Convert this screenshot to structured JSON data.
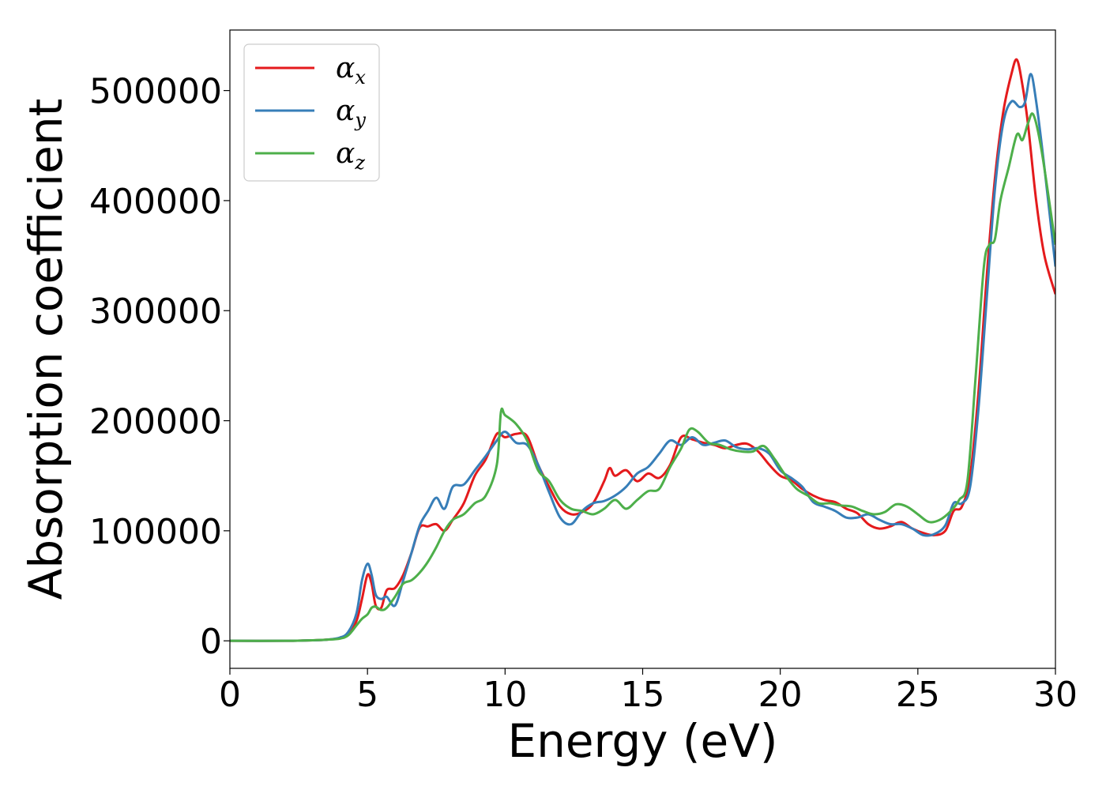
{
  "chart_data": {
    "type": "line",
    "xlabel": "Energy (eV)",
    "ylabel": "Absorption coefficient",
    "xlim": [
      0,
      30
    ],
    "ylim": [
      -25000,
      555000
    ],
    "xticks": [
      0,
      5,
      10,
      15,
      20,
      25,
      30
    ],
    "xtick_labels": [
      "0",
      "5",
      "10",
      "15",
      "20",
      "25",
      "30"
    ],
    "yticks": [
      0,
      100000,
      200000,
      300000,
      400000,
      500000
    ],
    "ytick_labels": [
      "0",
      "100000",
      "200000",
      "300000",
      "400000",
      "500000"
    ],
    "grid": false,
    "legend_position": "top-left",
    "series": [
      {
        "name": "α",
        "subscript": "x",
        "color": "#e41a1c",
        "x": [
          0,
          2,
          3,
          3.5,
          4,
          4.3,
          4.6,
          4.8,
          5.0,
          5.15,
          5.3,
          5.5,
          5.7,
          6.0,
          6.3,
          6.6,
          6.9,
          7.2,
          7.5,
          7.8,
          8.1,
          8.5,
          8.9,
          9.3,
          9.7,
          10.0,
          10.4,
          10.8,
          11.2,
          11.6,
          12.0,
          12.4,
          12.8,
          13.2,
          13.6,
          13.8,
          14.0,
          14.4,
          14.8,
          15.2,
          15.6,
          16.0,
          16.4,
          16.8,
          17.2,
          17.6,
          18.0,
          18.4,
          18.8,
          19.2,
          19.6,
          20.0,
          20.4,
          20.8,
          21.2,
          21.6,
          22.0,
          22.4,
          22.8,
          23.2,
          23.6,
          24.0,
          24.4,
          24.8,
          25.2,
          25.6,
          26.0,
          26.3,
          26.6,
          26.9,
          27.2,
          27.5,
          27.8,
          28.1,
          28.4,
          28.6,
          28.8,
          29.0,
          29.3,
          29.6,
          30.0
        ],
        "y": [
          0,
          0,
          500,
          1000,
          2500,
          6000,
          18000,
          38000,
          60000,
          52000,
          32000,
          30000,
          46000,
          48000,
          60000,
          80000,
          103000,
          104000,
          106000,
          100000,
          110000,
          125000,
          150000,
          165000,
          188000,
          185000,
          188000,
          186000,
          160000,
          140000,
          122000,
          115000,
          117000,
          125000,
          145000,
          157000,
          150000,
          155000,
          145000,
          152000,
          148000,
          160000,
          185000,
          183000,
          180000,
          178000,
          175000,
          178000,
          179000,
          172000,
          160000,
          150000,
          146000,
          138000,
          132000,
          128000,
          126000,
          120000,
          116000,
          106000,
          102000,
          104000,
          108000,
          102000,
          98000,
          96000,
          100000,
          118000,
          122000,
          150000,
          225000,
          330000,
          420000,
          480000,
          515000,
          528000,
          505000,
          470000,
          400000,
          350000,
          315000
        ]
      },
      {
        "name": "α",
        "subscript": "y",
        "color": "#377eb8",
        "x": [
          0,
          2,
          3,
          3.5,
          4,
          4.3,
          4.6,
          4.8,
          5.0,
          5.15,
          5.3,
          5.5,
          5.7,
          6.0,
          6.3,
          6.6,
          6.9,
          7.2,
          7.5,
          7.8,
          8.1,
          8.5,
          8.9,
          9.3,
          9.7,
          10.0,
          10.4,
          10.8,
          11.2,
          11.6,
          12.0,
          12.4,
          12.8,
          13.2,
          13.6,
          14.0,
          14.4,
          14.8,
          15.2,
          15.6,
          16.0,
          16.4,
          16.8,
          17.2,
          17.6,
          18.0,
          18.4,
          18.8,
          19.2,
          19.6,
          20.0,
          20.4,
          20.8,
          21.2,
          21.6,
          22.0,
          22.4,
          22.8,
          23.2,
          23.6,
          24.0,
          24.4,
          24.8,
          25.2,
          25.6,
          26.0,
          26.3,
          26.6,
          26.9,
          27.2,
          27.5,
          27.8,
          28.1,
          28.4,
          28.7,
          28.9,
          29.1,
          29.3,
          29.6,
          30.0
        ],
        "y": [
          0,
          0,
          500,
          1000,
          3000,
          8000,
          25000,
          55000,
          70000,
          60000,
          42000,
          38000,
          40000,
          32000,
          55000,
          80000,
          105000,
          118000,
          130000,
          120000,
          140000,
          142000,
          155000,
          168000,
          182000,
          190000,
          180000,
          178000,
          160000,
          135000,
          112000,
          106000,
          118000,
          125000,
          127000,
          132000,
          140000,
          152000,
          158000,
          170000,
          182000,
          178000,
          185000,
          178000,
          180000,
          182000,
          176000,
          174000,
          175000,
          170000,
          155000,
          148000,
          140000,
          126000,
          122000,
          118000,
          112000,
          112000,
          115000,
          110000,
          106000,
          106000,
          102000,
          96000,
          97000,
          105000,
          125000,
          125000,
          140000,
          210000,
          310000,
          410000,
          470000,
          490000,
          485000,
          490000,
          515000,
          490000,
          430000,
          340000
        ]
      },
      {
        "name": "α",
        "subscript": "z",
        "color": "#4daf4a",
        "x": [
          0,
          2,
          3,
          3.5,
          4,
          4.3,
          4.6,
          4.8,
          5.0,
          5.15,
          5.3,
          5.5,
          5.7,
          6.0,
          6.3,
          6.6,
          6.9,
          7.2,
          7.5,
          7.8,
          8.1,
          8.5,
          8.9,
          9.3,
          9.7,
          9.85,
          10.0,
          10.4,
          10.8,
          11.2,
          11.6,
          12.0,
          12.4,
          12.8,
          13.2,
          13.6,
          14.0,
          14.4,
          14.8,
          15.2,
          15.6,
          16.0,
          16.4,
          16.7,
          17.0,
          17.4,
          17.8,
          18.2,
          18.6,
          19.0,
          19.4,
          19.8,
          20.2,
          20.6,
          21.0,
          21.4,
          21.8,
          22.2,
          22.6,
          23.0,
          23.4,
          23.8,
          24.2,
          24.6,
          25.0,
          25.4,
          25.8,
          26.2,
          26.5,
          26.8,
          27.1,
          27.4,
          27.6,
          27.8,
          28.0,
          28.3,
          28.6,
          28.8,
          29.0,
          29.2,
          29.5,
          30.0
        ],
        "y": [
          0,
          0,
          500,
          1000,
          2000,
          5000,
          14000,
          20000,
          24000,
          30000,
          31000,
          28000,
          30000,
          40000,
          52000,
          55000,
          62000,
          72000,
          85000,
          100000,
          110000,
          115000,
          125000,
          132000,
          160000,
          208000,
          205000,
          197000,
          182000,
          155000,
          145000,
          128000,
          120000,
          118000,
          115000,
          120000,
          128000,
          120000,
          128000,
          136000,
          138000,
          158000,
          175000,
          192000,
          190000,
          180000,
          178000,
          174000,
          172000,
          172000,
          177000,
          165000,
          150000,
          138000,
          132000,
          125000,
          125000,
          123000,
          122000,
          118000,
          115000,
          117000,
          124000,
          122000,
          115000,
          108000,
          110000,
          118000,
          128000,
          145000,
          240000,
          340000,
          360000,
          365000,
          400000,
          430000,
          460000,
          455000,
          470000,
          478000,
          445000,
          360000
        ]
      }
    ]
  }
}
